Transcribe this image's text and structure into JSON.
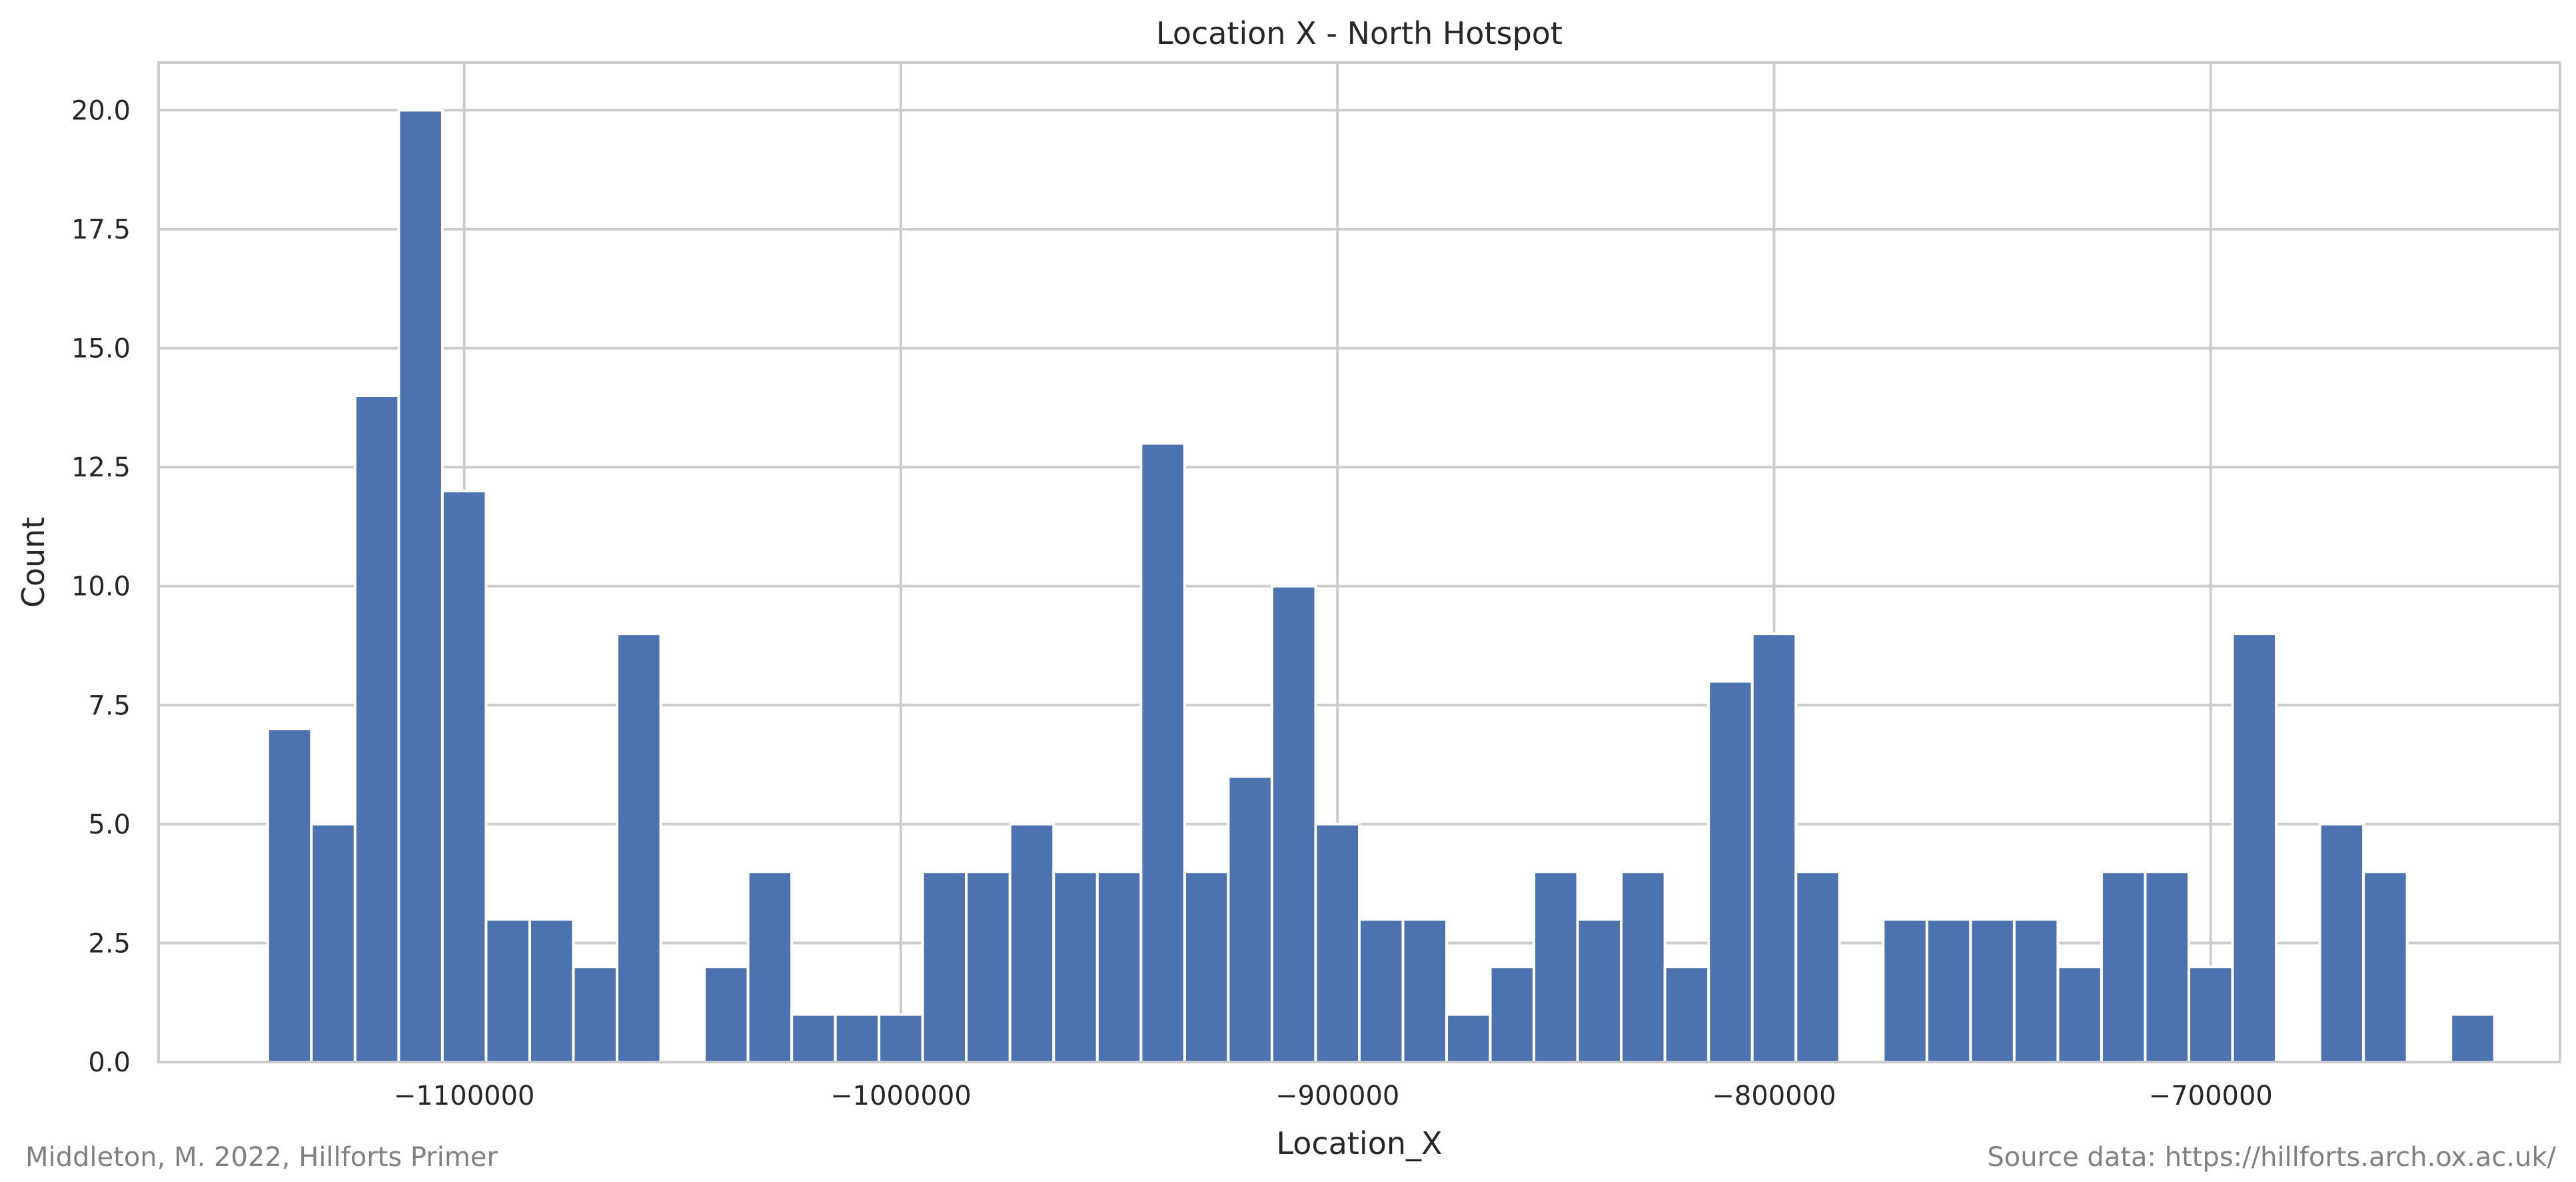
{
  "chart_data": {
    "type": "bar",
    "title": "Location X - North Hotspot",
    "xlabel": "Location_X",
    "ylabel": "Count",
    "xlim": [
      -1170000,
      -620000
    ],
    "ylim": [
      0,
      21
    ],
    "bin_start": -1145000,
    "bin_width": 10000,
    "values": [
      7,
      5,
      14,
      20,
      12,
      3,
      3,
      2,
      9,
      0,
      2,
      4,
      1,
      1,
      1,
      4,
      4,
      5,
      4,
      4,
      13,
      4,
      6,
      10,
      5,
      3,
      3,
      1,
      2,
      4,
      3,
      4,
      2,
      8,
      9,
      4,
      0,
      3,
      3,
      3,
      3,
      2,
      4,
      4,
      2,
      9,
      0,
      5,
      4,
      0,
      1
    ],
    "x_ticks": [
      -1100000,
      -1000000,
      -900000,
      -800000,
      -700000
    ],
    "x_tick_labels": [
      "−1100000",
      "−1000000",
      "−900000",
      "−800000",
      "−700000"
    ],
    "y_ticks": [
      0,
      2.5,
      5,
      7.5,
      10,
      12.5,
      15,
      17.5,
      20
    ],
    "y_tick_labels": [
      "0.0",
      "2.5",
      "5.0",
      "7.5",
      "10.0",
      "12.5",
      "15.0",
      "17.5",
      "20.0"
    ],
    "grid": true,
    "bar_color": "#4c72b0",
    "grid_color": "#cccccc",
    "spine_color": "#cccccc"
  },
  "footer": {
    "credit": "Middleton, M. 2022, Hillforts Primer",
    "source": "Source data: https://hillforts.arch.ox.ac.uk/"
  }
}
